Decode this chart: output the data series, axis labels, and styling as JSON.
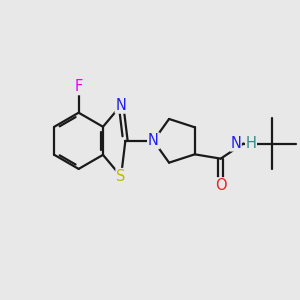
{
  "background": "#e8e8e8",
  "bond_color": "#1a1a1a",
  "bond_lw": 1.6,
  "atom_colors": {
    "F": "#ee00ee",
    "N": "#2020ee",
    "S": "#bbbb00",
    "O": "#ee2020",
    "H": "#338888",
    "C": "#1a1a1a"
  },
  "font_size": 10.5,
  "xlim": [
    -0.3,
    5.2
  ],
  "ylim": [
    -0.5,
    2.2
  ]
}
